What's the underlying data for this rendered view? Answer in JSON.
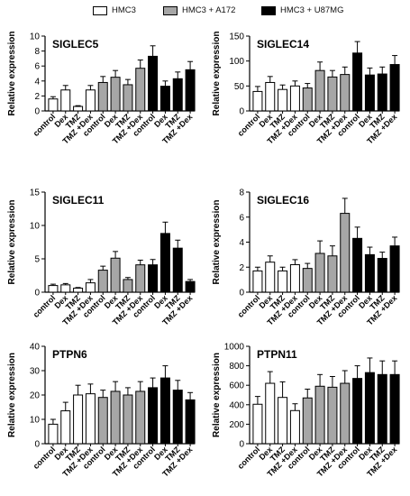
{
  "legend": [
    {
      "label": "HMC3",
      "color": "#ffffff"
    },
    {
      "label": "HMC3 + A172",
      "color": "#a6a6a6"
    },
    {
      "label": "HMC3 + U87MG",
      "color": "#000000"
    }
  ],
  "chart_data": [
    {
      "type": "bar",
      "title": "SIGLEC5",
      "ylabel": "Relative expression",
      "ylim": [
        0,
        10
      ],
      "yticks": [
        0,
        2,
        4,
        6,
        8,
        10
      ],
      "categories": [
        "control",
        "Dex",
        "TMZ",
        "TMZ +Dex"
      ],
      "series": [
        {
          "name": "HMC3",
          "values": [
            1.6,
            2.8,
            0.6,
            2.8
          ],
          "errors": [
            0.3,
            0.6,
            0.1,
            0.6
          ]
        },
        {
          "name": "HMC3 + A172",
          "values": [
            3.8,
            4.5,
            3.5,
            5.7
          ],
          "errors": [
            0.8,
            0.9,
            0.7,
            1.1
          ]
        },
        {
          "name": "HMC3 + U87MG",
          "values": [
            7.3,
            3.3,
            4.3,
            5.5
          ],
          "errors": [
            1.4,
            0.7,
            0.9,
            1.1
          ]
        }
      ]
    },
    {
      "type": "bar",
      "title": "SIGLEC14",
      "ylabel": "Relative expression",
      "ylim": [
        0,
        150
      ],
      "yticks": [
        0,
        50,
        100,
        150
      ],
      "categories": [
        "control",
        "Dex",
        "TMZ",
        "TMZ +Dex"
      ],
      "series": [
        {
          "name": "HMC3",
          "values": [
            39,
            57,
            43,
            50
          ],
          "errors": [
            10,
            12,
            9,
            10
          ]
        },
        {
          "name": "HMC3 + A172",
          "values": [
            46,
            81,
            68,
            73
          ],
          "errors": [
            9,
            17,
            13,
            15
          ]
        },
        {
          "name": "HMC3 + U87MG",
          "values": [
            116,
            72,
            74,
            93
          ],
          "errors": [
            23,
            14,
            14,
            18
          ]
        }
      ]
    },
    {
      "type": "bar",
      "title": "SIGLEC11",
      "ylabel": "Relative expression",
      "ylim": [
        0,
        15
      ],
      "yticks": [
        0,
        5,
        10,
        15
      ],
      "categories": [
        "control",
        "Dex",
        "TMZ",
        "TMZ +Dex"
      ],
      "series": [
        {
          "name": "HMC3",
          "values": [
            1.0,
            1.1,
            0.6,
            1.4
          ],
          "errors": [
            0.2,
            0.2,
            0.1,
            0.5
          ]
        },
        {
          "name": "HMC3 + A172",
          "values": [
            3.3,
            5.1,
            1.9,
            4.1
          ],
          "errors": [
            0.6,
            1.0,
            0.3,
            0.7
          ]
        },
        {
          "name": "HMC3 + U87MG",
          "values": [
            4.1,
            8.8,
            6.6,
            1.6
          ],
          "errors": [
            0.8,
            1.7,
            1.2,
            0.3
          ]
        }
      ]
    },
    {
      "type": "bar",
      "title": "SIGLEC16",
      "ylabel": "Relative expression",
      "ylim": [
        0,
        8
      ],
      "yticks": [
        0,
        2,
        4,
        6,
        8
      ],
      "categories": [
        "control",
        "Dex",
        "TMZ",
        "TMZ +Dex"
      ],
      "series": [
        {
          "name": "HMC3",
          "values": [
            1.7,
            2.4,
            1.7,
            2.2
          ],
          "errors": [
            0.3,
            0.5,
            0.3,
            0.4
          ]
        },
        {
          "name": "HMC3 + A172",
          "values": [
            1.9,
            3.1,
            2.9,
            6.3
          ],
          "errors": [
            0.4,
            1.0,
            0.8,
            1.2
          ]
        },
        {
          "name": "HMC3 + U87MG",
          "values": [
            4.3,
            3.0,
            2.7,
            3.7
          ],
          "errors": [
            0.9,
            0.6,
            0.5,
            0.7
          ]
        }
      ]
    },
    {
      "type": "bar",
      "title": "PTPN6",
      "ylabel": "Relative expression",
      "ylim": [
        0,
        40
      ],
      "yticks": [
        0,
        10,
        20,
        30,
        40
      ],
      "categories": [
        "control",
        "Dex",
        "TMZ",
        "TMZ +Dex"
      ],
      "series": [
        {
          "name": "HMC3",
          "values": [
            8,
            13.5,
            20,
            20.5
          ],
          "errors": [
            2,
            3.5,
            4,
            4
          ]
        },
        {
          "name": "HMC3 + A172",
          "values": [
            19,
            21.5,
            20,
            21.5
          ],
          "errors": [
            3,
            4,
            3,
            4
          ]
        },
        {
          "name": "HMC3 + U87MG",
          "values": [
            23,
            27,
            22,
            18
          ],
          "errors": [
            4,
            5,
            4,
            3
          ]
        }
      ]
    },
    {
      "type": "bar",
      "title": "PTPN11",
      "ylabel": "Relative expression",
      "ylim": [
        0,
        1000
      ],
      "yticks": [
        0,
        200,
        400,
        600,
        800,
        1000
      ],
      "categories": [
        "control",
        "Dex",
        "TMZ",
        "TMZ +Dex"
      ],
      "series": [
        {
          "name": "HMC3",
          "values": [
            405,
            620,
            475,
            340
          ],
          "errors": [
            80,
            120,
            160,
            70
          ]
        },
        {
          "name": "HMC3 + A172",
          "values": [
            470,
            590,
            580,
            620
          ],
          "errors": [
            90,
            120,
            110,
            130
          ]
        },
        {
          "name": "HMC3 + U87MG",
          "values": [
            670,
            730,
            710,
            710
          ],
          "errors": [
            130,
            150,
            140,
            140
          ]
        }
      ]
    }
  ]
}
